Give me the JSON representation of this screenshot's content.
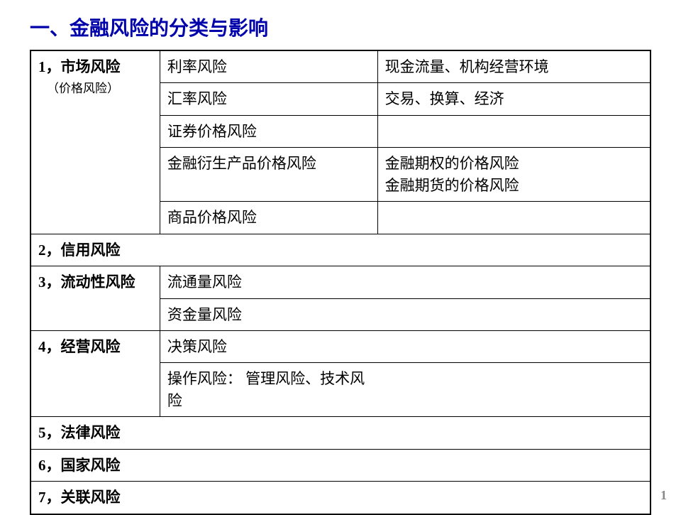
{
  "title": "一、金融风险的分类与影响",
  "pageNumber": "1",
  "rows": {
    "r1": {
      "label": "1，市场风险",
      "sub": "（价格风险）"
    },
    "r1_1": {
      "c2": "利率风险",
      "c3": "现金流量、机构经营环境"
    },
    "r1_2": {
      "c2": "汇率风险",
      "c3": "交易、换算、经济"
    },
    "r1_3": {
      "c2": "证券价格风险",
      "c3": ""
    },
    "r1_4": {
      "c2": "金融衍生产品价格风险",
      "c3": "金融期权的价格风险\n金融期货的价格风险"
    },
    "r1_5": {
      "c2": "商品价格风险",
      "c3": ""
    },
    "r2": {
      "label": "2，信用风险"
    },
    "r3": {
      "label": "3，流动性风险"
    },
    "r3_1": {
      "c2": "流通量风险"
    },
    "r3_2": {
      "c2": "资金量风险"
    },
    "r4": {
      "label": "4，经营风险"
    },
    "r4_1": {
      "c2": "决策风险"
    },
    "r4_2": {
      "c2": "操作风险： 管理风险、技术风险"
    },
    "r5": {
      "label": "5，法律风险"
    },
    "r6": {
      "label": "6，国家风险"
    },
    "r7": {
      "label": "7，关联风险"
    }
  }
}
